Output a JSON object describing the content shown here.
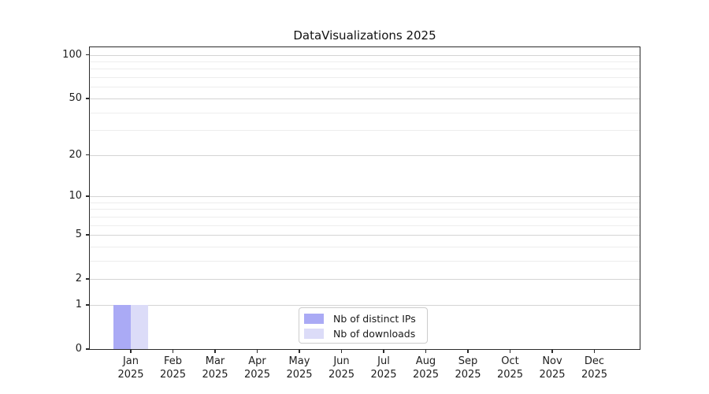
{
  "chart_data": {
    "type": "bar",
    "title": "DataVisualizations 2025",
    "categories": [
      "Jan 2025",
      "Feb 2025",
      "Mar 2025",
      "Apr 2025",
      "May 2025",
      "Jun 2025",
      "Jul 2025",
      "Aug 2025",
      "Sep 2025",
      "Oct 2025",
      "Nov 2025",
      "Dec 2025"
    ],
    "x_tick_line1": [
      "Jan",
      "Feb",
      "Mar",
      "Apr",
      "May",
      "Jun",
      "Jul",
      "Aug",
      "Sep",
      "Oct",
      "Nov",
      "Dec"
    ],
    "x_tick_line2": "2025",
    "series": [
      {
        "name": "Nb of distinct IPs",
        "color": "#aaaaf5",
        "values": [
          1,
          0,
          0,
          0,
          0,
          0,
          0,
          0,
          0,
          0,
          0,
          0
        ]
      },
      {
        "name": "Nb of downloads",
        "color": "#dcdcf8",
        "values": [
          1,
          0,
          0,
          0,
          0,
          0,
          0,
          0,
          0,
          0,
          0,
          0
        ]
      }
    ],
    "xlabel": "",
    "ylabel": "",
    "yscale": "log1p",
    "ylim": [
      0,
      113
    ],
    "y_major_ticks": [
      0,
      1,
      2,
      5,
      10,
      20,
      50,
      100
    ],
    "y_minor_ticks": [
      3,
      4,
      6,
      7,
      8,
      9,
      30,
      40,
      60,
      70,
      80,
      90
    ],
    "grid": true,
    "legend_position": "lower center"
  },
  "colors": {
    "grid_major": "#d4d4d4",
    "grid_minor": "#ededed",
    "spine": "#2b2b2b",
    "text": "#202020",
    "legend_border": "#cccccc",
    "background": "#ffffff"
  }
}
